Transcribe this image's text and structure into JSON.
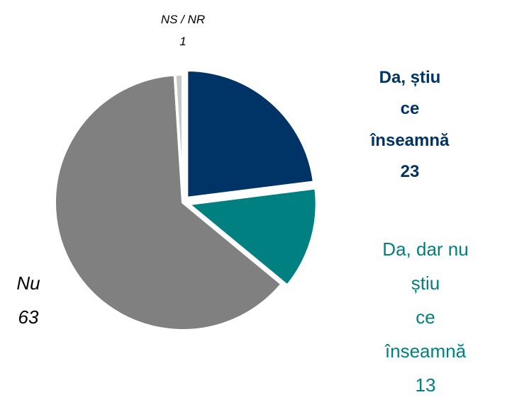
{
  "chart_data": {
    "type": "pie",
    "categories": [
      "Da, știu\nce înseamnă",
      "Da, dar nu știu\nce înseamnă",
      "Nu",
      "NS / NR"
    ],
    "values": [
      23,
      13,
      63,
      1
    ],
    "colors": [
      "#003366",
      "#008080",
      "#808080",
      "#c8c8c8"
    ]
  }
}
